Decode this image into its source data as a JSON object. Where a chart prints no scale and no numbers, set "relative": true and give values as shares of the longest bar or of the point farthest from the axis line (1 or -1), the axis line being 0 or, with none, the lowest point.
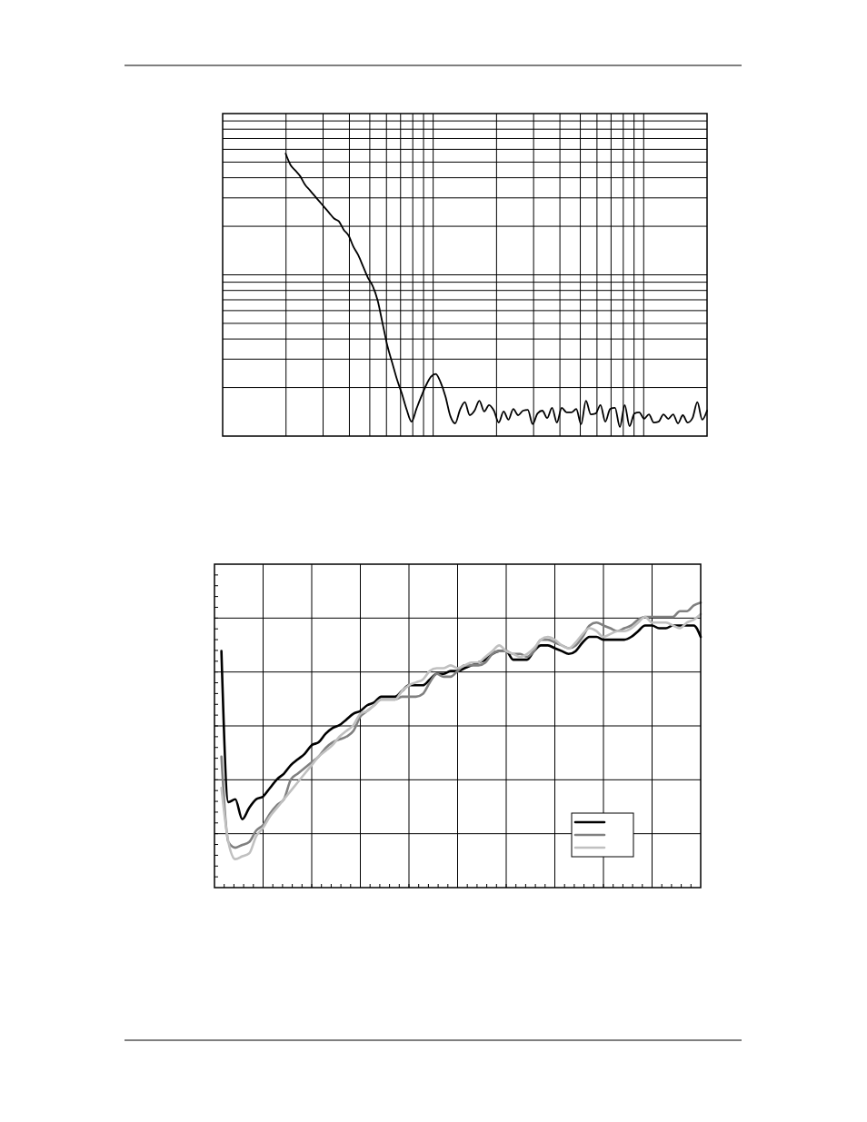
{
  "chart_data": [
    {
      "type": "line",
      "relative": true,
      "grid": true,
      "categories": [
        null,
        null,
        null,
        null,
        null,
        null,
        null,
        null,
        null,
        null,
        null,
        null,
        null,
        null,
        null,
        null,
        null,
        null,
        null,
        null,
        null,
        null,
        null,
        null,
        null,
        null,
        null,
        null,
        null,
        null,
        null,
        null,
        null,
        null,
        null,
        null,
        null,
        null,
        null,
        null,
        null,
        null,
        null,
        null,
        null,
        null,
        null,
        null,
        null,
        null,
        null,
        null,
        null,
        null,
        null,
        null,
        null,
        null,
        null,
        null,
        null,
        null,
        null,
        null,
        null,
        null,
        null,
        null,
        null,
        null,
        null,
        null,
        null,
        null,
        null,
        null,
        null,
        null,
        null,
        null,
        null,
        null,
        null,
        null,
        null,
        null,
        null,
        null,
        null,
        null,
        null,
        null,
        null,
        null,
        null,
        null,
        null,
        null,
        null,
        null,
        null
      ],
      "series": [
        {
          "color": "#000000",
          "values": [
            null,
            null,
            null,
            null,
            null,
            null,
            null,
            null,
            null,
            null,
            null,
            null,
            null,
            1,
            0.96,
            0.94,
            0.92,
            0.89,
            0.87,
            0.85,
            0.83,
            0.81,
            0.79,
            0.77,
            0.76,
            0.73,
            0.71,
            0.67,
            0.64,
            0.6,
            0.56,
            0.53,
            0.48,
            0.4,
            0.32,
            0.26,
            0.2,
            0.15,
            0.093,
            0.051,
            0.096,
            0.14,
            0.18,
            0.21,
            0.22,
            0.19,
            0.14,
            0.071,
            0.045,
            0.093,
            0.12,
            0.074,
            0.09,
            0.125,
            0.087,
            0.11,
            0.09,
            0.048,
            0.087,
            0.058,
            0.096,
            0.074,
            0.09,
            0.093,
            0.042,
            0.08,
            0.09,
            0.064,
            0.1,
            0.048,
            0.1,
            0.084,
            0.084,
            0.096,
            0.042,
            0.125,
            0.077,
            0.08,
            0.11,
            0.051,
            0.096,
            0.1,
            0.032,
            0.11,
            0.035,
            0.08,
            0.084,
            0.061,
            0.077,
            0.048,
            0.051,
            0.077,
            0.061,
            0.077,
            0.045,
            0.074,
            0.048,
            0.064,
            0.12,
            0.058,
            0.09
          ]
        }
      ]
    },
    {
      "type": "line",
      "relative": true,
      "grid": true,
      "categories": [
        null,
        null,
        null,
        null,
        null,
        null,
        null,
        null,
        null,
        null,
        null,
        null,
        null,
        null,
        null,
        null,
        null,
        null,
        null,
        null,
        null,
        null,
        null,
        null,
        null,
        null,
        null,
        null,
        null,
        null,
        null,
        null,
        null,
        null,
        null,
        null,
        null,
        null,
        null,
        null,
        null,
        null,
        null,
        null,
        null,
        null,
        null,
        null,
        null,
        null,
        null,
        null,
        null,
        null,
        null,
        null,
        null,
        null,
        null,
        null,
        null,
        null,
        null,
        null,
        null,
        null,
        null,
        null,
        null,
        null,
        null
      ],
      "series": [
        {
          "color": "#000000",
          "values": [
            null,
            0.83,
            0.3,
            0.31,
            0.24,
            0.28,
            0.31,
            0.32,
            0.35,
            0.38,
            0.4,
            0.43,
            0.45,
            0.47,
            0.5,
            0.51,
            0.54,
            0.56,
            0.57,
            0.59,
            0.61,
            0.62,
            0.64,
            0.65,
            0.67,
            0.67,
            0.67,
            0.69,
            0.71,
            0.71,
            0.71,
            0.73,
            0.75,
            0.75,
            0.76,
            0.76,
            0.77,
            0.78,
            0.79,
            0.8,
            0.82,
            0.83,
            0.83,
            0.8,
            0.8,
            0.8,
            0.83,
            0.85,
            0.85,
            0.84,
            0.83,
            0.82,
            0.83,
            0.86,
            0.88,
            0.88,
            0.87,
            0.87,
            0.87,
            0.87,
            0.88,
            0.9,
            0.92,
            0.92,
            0.91,
            0.91,
            0.92,
            0.92,
            0.92,
            0.92,
            0.88
          ]
        },
        {
          "color": "#808080",
          "values": [
            null,
            0.46,
            0.16,
            0.14,
            0.15,
            0.16,
            0.2,
            0.22,
            0.26,
            0.29,
            0.31,
            0.38,
            0.4,
            0.42,
            0.44,
            0.46,
            0.49,
            0.51,
            0.52,
            0.53,
            0.55,
            0.6,
            0.62,
            0.64,
            0.66,
            0.66,
            0.66,
            0.67,
            0.67,
            0.67,
            0.68,
            0.72,
            0.75,
            0.74,
            0.74,
            0.76,
            0.78,
            0.78,
            0.78,
            0.79,
            0.82,
            0.83,
            0.83,
            0.82,
            0.82,
            0.81,
            0.83,
            0.87,
            0.87,
            0.86,
            0.85,
            0.84,
            0.85,
            0.88,
            0.92,
            0.93,
            0.92,
            0.91,
            0.9,
            0.91,
            0.92,
            0.94,
            0.95,
            0.95,
            0.95,
            0.95,
            0.95,
            0.97,
            0.97,
            0.99,
            1
          ]
        },
        {
          "color": "#c0c0c0",
          "values": [
            null,
            0.35,
            0.16,
            0.1,
            0.11,
            0.12,
            0.18,
            0.21,
            0.25,
            0.28,
            0.31,
            0.34,
            0.37,
            0.4,
            0.43,
            0.46,
            0.48,
            0.5,
            0.53,
            0.55,
            0.57,
            0.61,
            0.62,
            0.64,
            0.66,
            0.66,
            0.66,
            0.69,
            0.71,
            0.72,
            0.73,
            0.76,
            0.77,
            0.77,
            0.78,
            0.77,
            0.78,
            0.79,
            0.79,
            0.81,
            0.83,
            0.85,
            0.83,
            0.82,
            0.81,
            0.82,
            0.84,
            0.87,
            0.88,
            0.87,
            0.85,
            0.84,
            0.86,
            0.89,
            0.91,
            0.9,
            0.88,
            0.89,
            0.9,
            0.9,
            0.91,
            0.93,
            0.95,
            0.93,
            0.93,
            0.93,
            0.92,
            0.91,
            0.93,
            0.94,
            0.96
          ]
        }
      ]
    }
  ]
}
